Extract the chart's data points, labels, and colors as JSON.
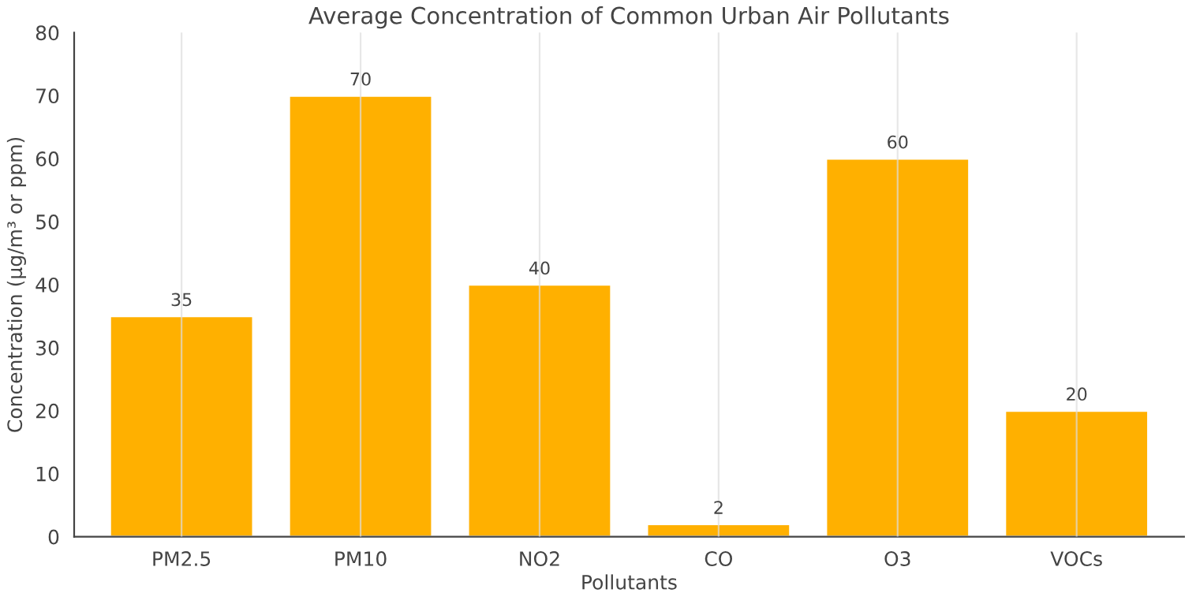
{
  "chart_data": {
    "type": "bar",
    "title": "Average Concentration of Common Urban Air Pollutants",
    "xlabel": "Pollutants",
    "ylabel": "Concentration (µg/m³ or ppm)",
    "categories": [
      "PM2.5",
      "PM10",
      "NO2",
      "CO",
      "O3",
      "VOCs"
    ],
    "values": [
      35,
      70,
      40,
      2,
      60,
      20
    ],
    "color": "#ffb000",
    "ylim": [
      0,
      80
    ],
    "yticks": [
      0,
      10,
      20,
      30,
      40,
      50,
      60,
      70,
      80
    ],
    "grid": "x",
    "data_labels": true
  }
}
